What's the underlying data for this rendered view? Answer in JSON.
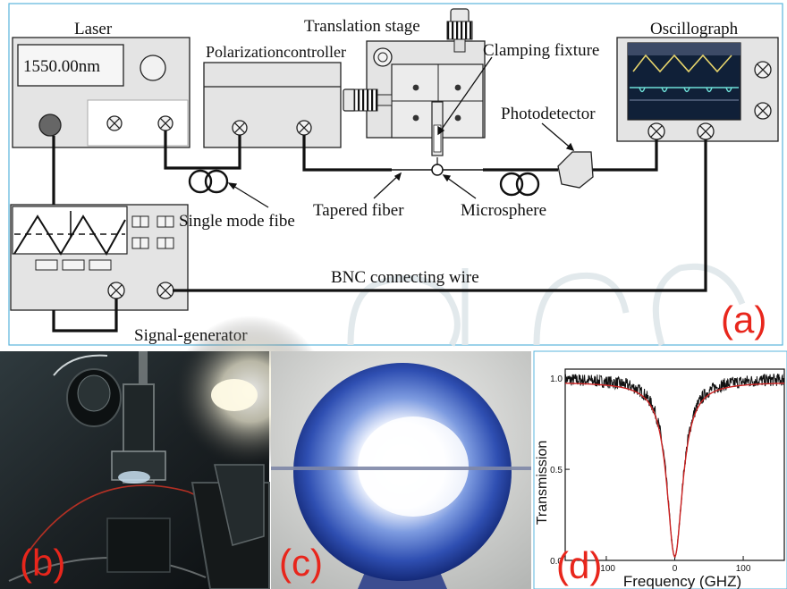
{
  "diagram_a": {
    "laser_label": "Laser",
    "laser_display": "1550.00nm",
    "polarization_label": "Polarizationcontroller",
    "translation_label": "Translation stage",
    "clamping_label": "Clamping fixture",
    "oscillograph_label": "Oscillograph",
    "photodetector_label": "Photodetector",
    "single_mode_label": "Single mode fibe",
    "tapered_label": "Tapered fiber",
    "microsphere_label": "Microsphere",
    "bnc_label": "BNC connecting wire",
    "signal_gen_label": "Signal-generator",
    "panel_label": "(a)"
  },
  "panel_b": {
    "panel_label": "(b)"
  },
  "panel_c": {
    "panel_label": "(c)"
  },
  "colors": {
    "accent": "#e8261c",
    "frame": "#5ab4dc",
    "fit": "#cc2222"
  },
  "chart_data": {
    "type": "line",
    "panel_label": "(d)",
    "title": "",
    "xlabel": "Frequency (GHZ)",
    "ylabel": "Transmission",
    "xlim": [
      -160,
      160
    ],
    "ylim": [
      0.0,
      1.05
    ],
    "xticks": [
      -100,
      0,
      100
    ],
    "xtick_labels": [
      "-100",
      "0",
      "100"
    ],
    "yticks": [
      0.0,
      0.5,
      1.0
    ],
    "ytick_labels": [
      "0.0",
      "0.5",
      "1.0"
    ],
    "grid": false,
    "series": [
      {
        "name": "",
        "style": "noisy-measurement",
        "color": "#111111",
        "baseline": 1.0,
        "dip_center": 0,
        "dip_min": 0.02,
        "dip_halfwidth": 14
      },
      {
        "name": "",
        "style": "lorentzian-fit",
        "color": "#cc2222",
        "baseline": 0.98,
        "dip_center": 0,
        "dip_min": 0.02,
        "dip_halfwidth": 14
      }
    ]
  }
}
